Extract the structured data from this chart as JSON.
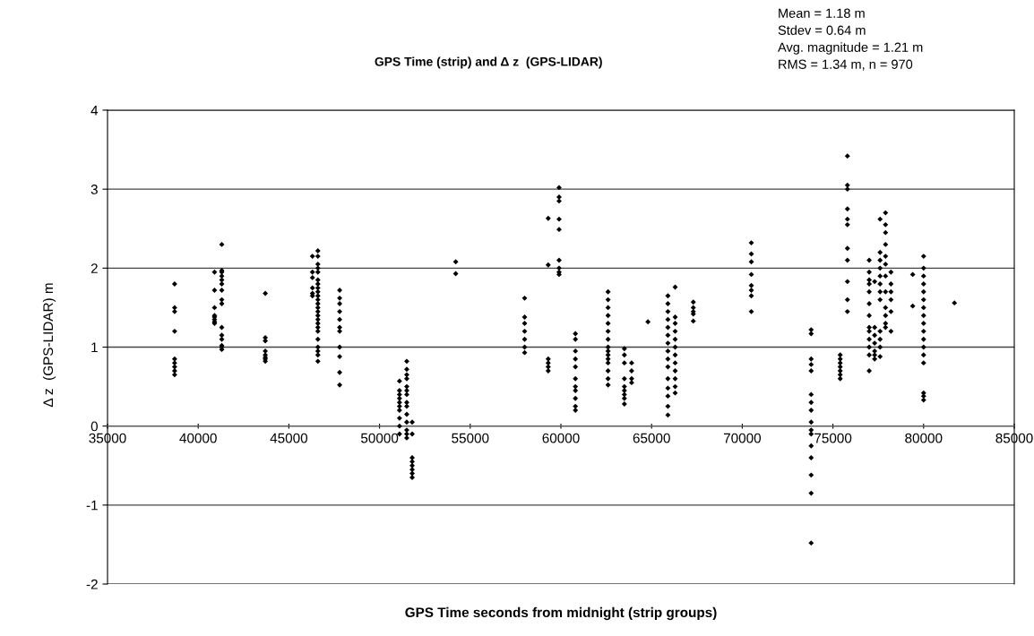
{
  "chart_data": {
    "type": "scatter",
    "title": "GPS Time (strip) and Δ z  (GPS-LIDAR)",
    "xlabel": "GPS Time seconds from midnight (strip groups)",
    "ylabel": "Δ z  (GPS-LIDAR) m",
    "annotations": [
      "Mean = 1.18 m",
      "Stdev = 0.64 m",
      "Avg. magnitude = 1.21 m",
      "RMS = 1.34 m, n = 970"
    ],
    "xlim": [
      35000,
      85000
    ],
    "xticks": [
      35000,
      40000,
      45000,
      50000,
      55000,
      60000,
      65000,
      70000,
      75000,
      80000,
      85000
    ],
    "ylim": [
      -2,
      4
    ],
    "yticks": [
      -2,
      -1,
      0,
      1,
      2,
      3,
      4
    ],
    "grid": "y",
    "marker": "diamond",
    "series": [
      {
        "color": "#000000",
        "x": [
          38700,
          38700,
          38700,
          38700,
          38700,
          38700,
          38700,
          38700,
          38700,
          40900,
          40900,
          40900,
          40900,
          40900,
          40900,
          40900,
          40900,
          41300,
          41300,
          41300,
          41300,
          41300,
          41300,
          41300,
          41300,
          41300,
          41300,
          41300,
          41300,
          41300,
          41300,
          41300,
          43700,
          43700,
          43700,
          43700,
          43700,
          43700,
          43700,
          43700,
          46300,
          46300,
          46300,
          46300,
          46300,
          46300,
          46600,
          46600,
          46600,
          46600,
          46600,
          46600,
          46600,
          46600,
          46600,
          46600,
          46600,
          46600,
          46600,
          46600,
          46600,
          46600,
          46600,
          46600,
          46600,
          46600,
          46600,
          46600,
          46600,
          46600,
          47800,
          47800,
          47800,
          47800,
          47800,
          47800,
          47800,
          47800,
          47800,
          47800,
          47800,
          51100,
          51100,
          51100,
          51100,
          51100,
          51100,
          51100,
          51100,
          51100,
          51100,
          51500,
          51500,
          51500,
          51500,
          51500,
          51500,
          51500,
          51500,
          51500,
          51500,
          51500,
          51500,
          51500,
          51500,
          51800,
          51800,
          51800,
          51800,
          51800,
          51800,
          51800,
          51800,
          54200,
          54200,
          58000,
          58000,
          58000,
          58000,
          58000,
          58000,
          58000,
          59300,
          59300,
          59300,
          59300,
          59300,
          59300,
          59900,
          59900,
          59900,
          59900,
          59900,
          59900,
          59900,
          59900,
          59900,
          60800,
          60800,
          60800,
          60800,
          60800,
          60800,
          60800,
          60800,
          60800,
          60800,
          60800,
          62600,
          62600,
          62600,
          62600,
          62600,
          62600,
          62600,
          62600,
          62600,
          62600,
          62600,
          62600,
          62600,
          62600,
          62600,
          63500,
          63500,
          63500,
          63500,
          63500,
          63500,
          63500,
          63500,
          63500,
          63900,
          63900,
          63900,
          63900,
          64800,
          65900,
          65900,
          65900,
          65900,
          65900,
          65900,
          65900,
          65900,
          65900,
          65900,
          65900,
          65900,
          65900,
          65900,
          65900,
          66300,
          66300,
          66300,
          66300,
          66300,
          66300,
          66300,
          66300,
          66300,
          66300,
          66300,
          66300,
          67300,
          67300,
          67300,
          67300,
          67300,
          70500,
          70500,
          70500,
          70500,
          70500,
          70500,
          70500,
          70500,
          73800,
          73800,
          73800,
          73800,
          73800,
          73800,
          73800,
          73800,
          73800,
          73800,
          73800,
          73800,
          73800,
          73800,
          73800,
          73800,
          75400,
          75400,
          75400,
          75400,
          75400,
          75400,
          75400,
          75800,
          75800,
          75800,
          75800,
          75800,
          75800,
          75800,
          75800,
          75800,
          75800,
          75800,
          77000,
          77000,
          77000,
          77000,
          77000,
          77000,
          77000,
          77000,
          77000,
          77000,
          77000,
          77000,
          77000,
          77300,
          77300,
          77300,
          77300,
          77300,
          77300,
          77300,
          77600,
          77600,
          77600,
          77600,
          77600,
          77600,
          77600,
          77600,
          77600,
          77600,
          77600,
          77600,
          77900,
          77900,
          77900,
          77900,
          77900,
          77900,
          77900,
          77900,
          77900,
          77900,
          77900,
          77900,
          78200,
          78200,
          78200,
          78200,
          78200,
          78200,
          79400,
          79400,
          80000,
          80000,
          80000,
          80000,
          80000,
          80000,
          80000,
          80000,
          80000,
          80000,
          80000,
          80000,
          80000,
          80000,
          80000,
          80000,
          80000,
          81700
        ],
        "values": [
          1.8,
          1.5,
          1.45,
          1.2,
          0.85,
          0.8,
          0.75,
          0.7,
          0.65,
          1.95,
          1.72,
          1.5,
          1.4,
          1.38,
          1.35,
          1.32,
          1.3,
          2.3,
          1.97,
          1.95,
          1.9,
          1.85,
          1.8,
          1.72,
          1.6,
          1.55,
          1.25,
          1.15,
          1.1,
          1.02,
          1.0,
          0.97,
          1.68,
          1.12,
          1.08,
          0.95,
          0.9,
          0.87,
          0.85,
          0.82,
          2.15,
          1.95,
          1.88,
          1.75,
          1.68,
          1.65,
          2.22,
          2.15,
          2.05,
          2.0,
          1.95,
          1.85,
          1.8,
          1.75,
          1.7,
          1.65,
          1.6,
          1.55,
          1.5,
          1.45,
          1.4,
          1.35,
          1.3,
          1.25,
          1.2,
          1.1,
          1.0,
          0.95,
          0.9,
          0.82,
          1.72,
          1.62,
          1.55,
          1.45,
          1.35,
          1.25,
          1.2,
          1.0,
          0.88,
          0.68,
          0.52,
          0.57,
          0.45,
          0.4,
          0.35,
          0.3,
          0.25,
          0.2,
          0.1,
          0.0,
          -0.1,
          0.82,
          0.72,
          0.65,
          0.6,
          0.5,
          0.45,
          0.4,
          0.3,
          0.25,
          0.15,
          0.05,
          -0.05,
          -0.1,
          -0.15,
          0.05,
          -0.1,
          -0.4,
          -0.45,
          -0.5,
          -0.55,
          -0.6,
          -0.65,
          2.08,
          1.93,
          1.62,
          1.38,
          1.3,
          1.2,
          1.1,
          1.0,
          0.93,
          2.63,
          2.04,
          0.85,
          0.8,
          0.75,
          0.7,
          3.02,
          2.9,
          2.85,
          2.62,
          2.49,
          2.1,
          2.0,
          1.95,
          1.92,
          1.17,
          1.1,
          0.95,
          0.85,
          0.75,
          0.6,
          0.5,
          0.45,
          0.35,
          0.25,
          0.2,
          1.7,
          1.6,
          1.5,
          1.4,
          1.3,
          1.2,
          1.1,
          1.0,
          0.95,
          0.9,
          0.85,
          0.8,
          0.7,
          0.6,
          0.52,
          0.98,
          0.9,
          0.8,
          0.6,
          0.5,
          0.45,
          0.4,
          0.35,
          0.28,
          0.8,
          0.7,
          0.6,
          0.55,
          1.32,
          1.65,
          1.55,
          1.45,
          1.35,
          1.25,
          1.15,
          1.05,
          0.95,
          0.85,
          0.75,
          0.6,
          0.48,
          0.38,
          0.25,
          0.14,
          1.76,
          1.38,
          1.3,
          1.2,
          1.1,
          1.0,
          0.9,
          0.8,
          0.7,
          0.6,
          0.5,
          0.42,
          1.57,
          1.5,
          1.45,
          1.42,
          1.33,
          2.32,
          2.18,
          2.08,
          1.92,
          1.78,
          1.72,
          1.65,
          1.45,
          1.22,
          1.17,
          0.85,
          0.78,
          0.7,
          0.4,
          0.3,
          0.2,
          0.05,
          -0.05,
          -0.1,
          -0.25,
          -0.4,
          -0.62,
          -0.85,
          -1.48,
          0.9,
          0.85,
          0.8,
          0.75,
          0.7,
          0.65,
          0.6,
          3.42,
          3.05,
          3.0,
          2.75,
          2.62,
          2.55,
          2.25,
          2.1,
          1.83,
          1.6,
          1.45,
          2.1,
          1.95,
          1.85,
          1.8,
          1.7,
          1.55,
          1.4,
          1.25,
          1.2,
          1.1,
          1.0,
          0.9,
          0.7,
          1.83,
          1.25,
          1.15,
          1.05,
          0.95,
          0.9,
          0.85,
          2.62,
          2.2,
          2.1,
          2.0,
          1.9,
          1.8,
          1.7,
          1.6,
          1.2,
          1.1,
          1.0,
          0.88,
          2.7,
          2.55,
          2.45,
          2.3,
          2.15,
          2.05,
          1.9,
          1.7,
          1.5,
          1.4,
          1.3,
          1.25,
          1.95,
          1.8,
          1.7,
          1.6,
          1.45,
          1.2,
          1.92,
          1.52,
          2.15,
          2.0,
          1.9,
          1.8,
          1.7,
          1.6,
          1.5,
          1.4,
          1.3,
          1.2,
          1.1,
          1.0,
          0.9,
          0.8,
          0.42,
          0.38,
          0.33,
          1.56
        ]
      }
    ]
  }
}
